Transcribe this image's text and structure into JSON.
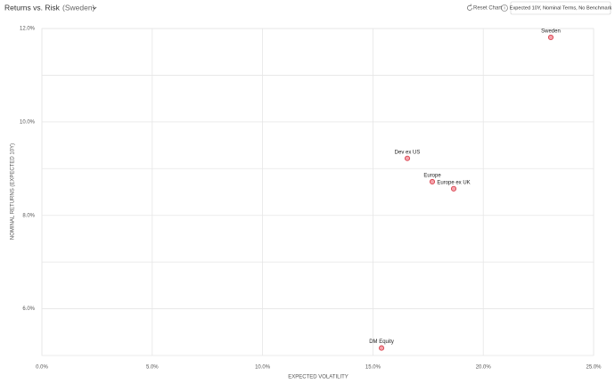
{
  "chart_data": {
    "type": "scatter",
    "title": "Returns vs. Risk",
    "subtitle": "(Sweden)",
    "controls": {
      "reset": "Reset Chart",
      "info": "i",
      "settings": "Expected 10Y, Nominal Terms, No Benchmark"
    },
    "x_label": "EXPECTED VOLATILITY",
    "y_label": "NOMINAL RETURNS (EXPECTED 10Y)",
    "labels": [
      "Sweden",
      "Dev ex US",
      "Europe",
      "Europe ex UK",
      "DM Equity"
    ],
    "x": [
      23.06,
      16.56,
      17.69,
      18.66,
      15.39
    ],
    "values": [
      11.81,
      9.22,
      8.72,
      8.57,
      5.16
    ],
    "color": "#f4a3ab",
    "edge_color": "#d9434f",
    "xlim": [
      0,
      25
    ],
    "ylim": [
      5,
      12
    ],
    "xticks": [
      {
        "value": 0,
        "label": "0.0%"
      },
      {
        "value": 5,
        "label": "5.0%"
      },
      {
        "value": 10,
        "label": "10.0%"
      },
      {
        "value": 15,
        "label": "15.0%"
      },
      {
        "value": 20,
        "label": "20.0%"
      },
      {
        "value": 25,
        "label": "25.0%"
      }
    ],
    "yticks": [
      {
        "value": 6,
        "label": "6.0%"
      },
      {
        "value": 8,
        "label": "8.0%"
      },
      {
        "value": 10,
        "label": "10.0%"
      },
      {
        "value": 12,
        "label": "12.0%"
      }
    ],
    "y_minor_grid": [
      7,
      9,
      11
    ],
    "grid": true
  }
}
